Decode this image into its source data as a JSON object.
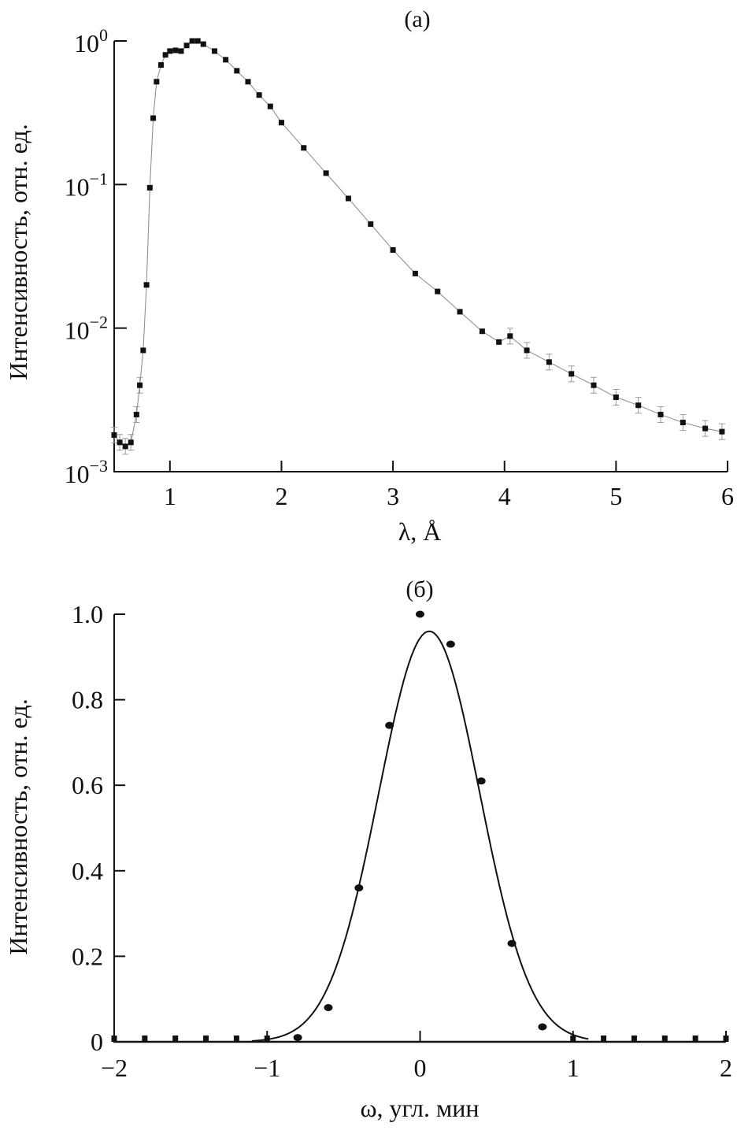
{
  "chart_data": [
    {
      "type": "scatter",
      "title": "(a)",
      "xlabel": "λ, Å",
      "ylabel": "Интенсивность, отн. ед.",
      "xlim": [
        0.5,
        6
      ],
      "ylim": [
        0.001,
        1
      ],
      "yscale": "log",
      "grid": false,
      "xticks": [
        "1",
        "2",
        "3",
        "4",
        "5",
        "6"
      ],
      "yticks": [
        {
          "base": "10",
          "exp": "0"
        },
        {
          "base": "10",
          "exp": "−1"
        },
        {
          "base": "10",
          "exp": "−2"
        },
        {
          "base": "10",
          "exp": "−3"
        }
      ],
      "error_bars": true,
      "connecting_line": true,
      "x": [
        0.5,
        0.55,
        0.6,
        0.65,
        0.7,
        0.73,
        0.76,
        0.79,
        0.82,
        0.85,
        0.88,
        0.92,
        0.96,
        1.0,
        1.05,
        1.1,
        1.15,
        1.2,
        1.25,
        1.3,
        1.4,
        1.5,
        1.6,
        1.7,
        1.8,
        1.9,
        2.0,
        2.2,
        2.4,
        2.6,
        2.8,
        3.0,
        3.2,
        3.4,
        3.6,
        3.8,
        3.95,
        4.05,
        4.2,
        4.4,
        4.6,
        4.8,
        5.0,
        5.2,
        5.4,
        5.6,
        5.8,
        5.95
      ],
      "y": [
        0.0018,
        0.0016,
        0.0015,
        0.0016,
        0.0025,
        0.004,
        0.007,
        0.02,
        0.095,
        0.29,
        0.52,
        0.68,
        0.8,
        0.85,
        0.86,
        0.85,
        0.93,
        1.0,
        1.0,
        0.95,
        0.85,
        0.74,
        0.62,
        0.52,
        0.42,
        0.35,
        0.27,
        0.18,
        0.12,
        0.08,
        0.053,
        0.035,
        0.024,
        0.018,
        0.013,
        0.0095,
        0.008,
        0.0088,
        0.007,
        0.0058,
        0.0048,
        0.004,
        0.0033,
        0.0029,
        0.0025,
        0.0022,
        0.002,
        0.0019
      ]
    },
    {
      "type": "scatter",
      "title": "(б)",
      "xlabel": "ω, угл. мин",
      "ylabel": "Интенсивность, отн. ед.",
      "xlim": [
        -2,
        2
      ],
      "ylim": [
        0,
        1.0
      ],
      "grid": false,
      "xticks": [
        "−2",
        "−1",
        "0",
        "1",
        "2"
      ],
      "yticks": [
        "0",
        "0.2",
        "0.4",
        "0.6",
        "0.8",
        "1.0"
      ],
      "x": [
        -2,
        -1.8,
        -1.6,
        -1.4,
        -1.2,
        -1.0,
        -0.8,
        -0.6,
        -0.4,
        -0.2,
        0,
        0.2,
        0.4,
        0.6,
        0.8,
        1.0,
        1.2,
        1.4,
        1.6,
        1.8,
        2.0
      ],
      "y": [
        0,
        0,
        0,
        0,
        0,
        0,
        0.01,
        0.08,
        0.36,
        0.74,
        1.0,
        0.93,
        0.61,
        0.23,
        0.035,
        0,
        0,
        0,
        0,
        0,
        0
      ],
      "fit": {
        "type": "gaussian",
        "amplitude": 0.96,
        "center": 0.06,
        "sigma": 0.33
      }
    }
  ]
}
